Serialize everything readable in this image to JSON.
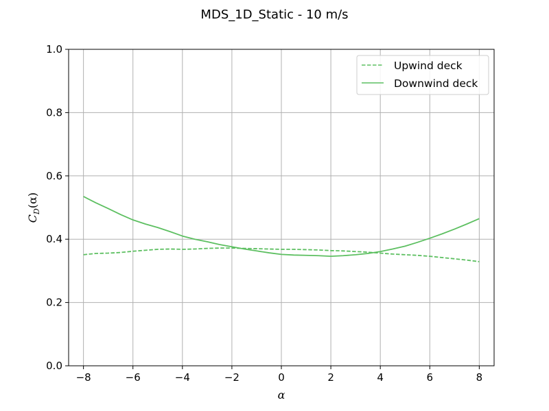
{
  "chart_data": {
    "type": "line",
    "title": "MDS_1D_Static - 10 m/s",
    "xlabel": "α",
    "ylabel_main": "C",
    "ylabel_sub": "D",
    "ylabel_tail": "(α)",
    "xlim": [
      -8.6,
      8.6
    ],
    "ylim": [
      0.0,
      1.0
    ],
    "xticks": [
      -8,
      -6,
      -4,
      -2,
      0,
      2,
      4,
      6,
      8
    ],
    "xtick_labels": [
      "−8",
      "−6",
      "−4",
      "−2",
      "0",
      "2",
      "4",
      "6",
      "8"
    ],
    "yticks": [
      0.0,
      0.2,
      0.4,
      0.6,
      0.8,
      1.0
    ],
    "ytick_labels": [
      "0.0",
      "0.2",
      "0.4",
      "0.6",
      "0.8",
      "1.0"
    ],
    "grid": true,
    "legend_position": "top-right",
    "color": "#5cbf60",
    "series": [
      {
        "name": "Upwind deck",
        "style": "dashed",
        "x": [
          -8,
          -7.5,
          -7,
          -6.5,
          -6,
          -5.5,
          -5,
          -4.5,
          -4,
          -3.5,
          -3,
          -2.5,
          -2,
          -1.5,
          -1,
          -0.5,
          0,
          0.5,
          1,
          1.5,
          2,
          2.5,
          3,
          3.5,
          4,
          4.5,
          5,
          5.5,
          6,
          6.5,
          7,
          7.5,
          8
        ],
        "y": [
          0.351,
          0.355,
          0.356,
          0.358,
          0.362,
          0.365,
          0.368,
          0.369,
          0.368,
          0.369,
          0.371,
          0.372,
          0.372,
          0.371,
          0.37,
          0.369,
          0.368,
          0.368,
          0.367,
          0.366,
          0.364,
          0.363,
          0.361,
          0.359,
          0.356,
          0.353,
          0.351,
          0.349,
          0.346,
          0.342,
          0.338,
          0.334,
          0.329
        ]
      },
      {
        "name": "Downwind deck",
        "style": "solid",
        "x": [
          -8,
          -7.5,
          -7,
          -6.5,
          -6,
          -5.5,
          -5,
          -4.5,
          -4,
          -3.5,
          -3,
          -2.5,
          -2,
          -1.5,
          -1,
          -0.5,
          0,
          0.5,
          1,
          1.5,
          2,
          2.5,
          3,
          3.5,
          4,
          4.5,
          5,
          5.5,
          6,
          6.5,
          7,
          7.5,
          8
        ],
        "y": [
          0.535,
          0.515,
          0.497,
          0.478,
          0.461,
          0.448,
          0.437,
          0.424,
          0.41,
          0.4,
          0.392,
          0.383,
          0.376,
          0.369,
          0.363,
          0.357,
          0.352,
          0.35,
          0.349,
          0.348,
          0.346,
          0.348,
          0.351,
          0.355,
          0.361,
          0.369,
          0.378,
          0.39,
          0.403,
          0.417,
          0.432,
          0.448,
          0.465
        ]
      }
    ]
  }
}
